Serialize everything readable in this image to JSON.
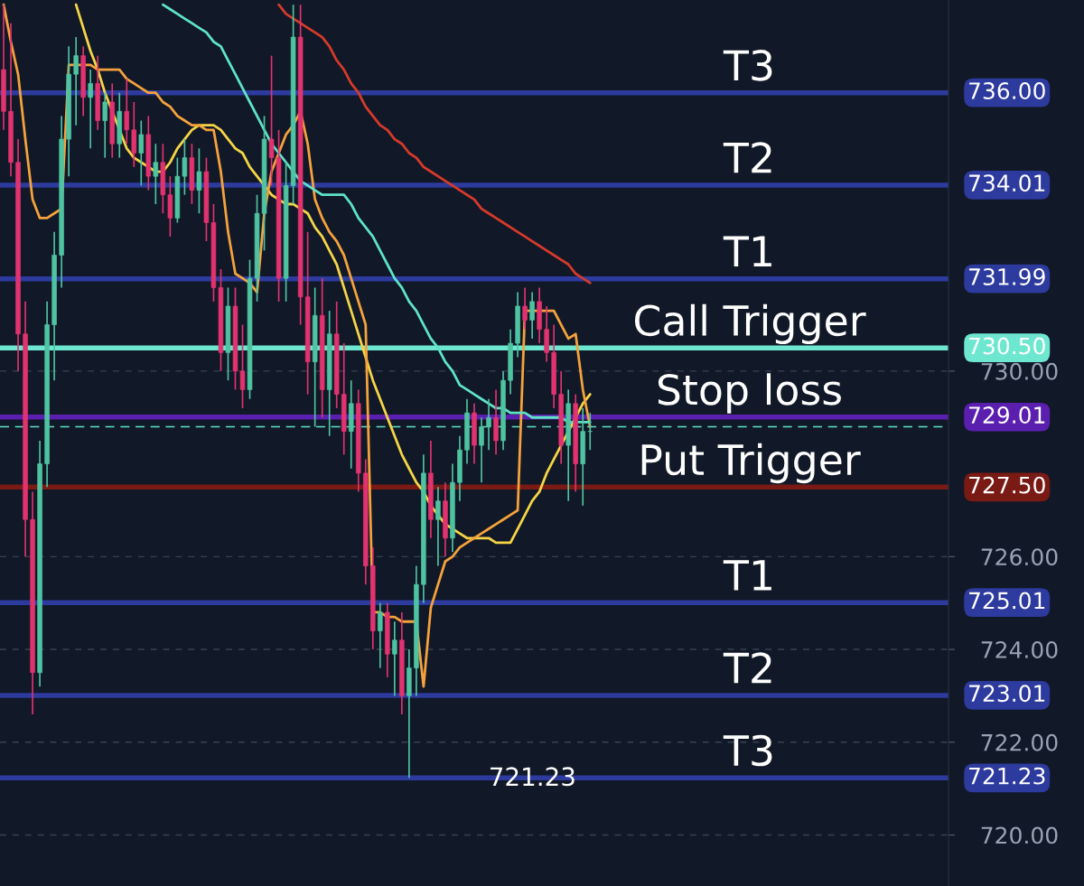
{
  "chart_data": {
    "type": "candlestick",
    "categories": [
      null,
      null,
      null,
      null,
      null,
      null,
      null,
      null,
      null,
      null,
      null,
      null,
      null,
      null,
      null,
      null,
      null,
      null,
      null,
      null,
      null,
      null,
      null,
      null,
      null,
      null,
      null,
      null,
      null,
      null,
      null,
      null,
      null,
      null,
      null,
      null,
      null,
      null,
      null,
      null,
      null,
      null,
      null,
      null,
      null,
      null,
      null,
      null,
      null,
      null,
      null,
      null,
      null,
      null,
      null,
      null,
      null,
      null,
      null,
      null,
      null,
      null,
      null,
      null,
      null,
      null,
      null,
      null,
      null,
      null,
      null,
      null,
      null,
      null,
      null,
      null,
      null,
      null,
      null,
      null,
      null,
      null,
      null,
      null,
      null,
      null,
      null,
      null,
      null,
      null,
      null,
      null,
      null,
      null,
      null,
      null,
      null,
      null,
      null,
      null,
      null,
      null,
      null,
      null,
      null,
      null,
      null,
      null,
      null,
      null,
      null,
      null,
      null,
      null,
      null,
      null,
      null,
      null,
      null,
      null,
      null,
      null,
      null,
      null,
      null,
      null,
      null,
      null,
      null,
      null,
      null
    ],
    "ohlc": [
      [
        736.5,
        737.9,
        735.2,
        735.6
      ],
      [
        735.6,
        737.5,
        734.2,
        734.5
      ],
      [
        734.5,
        735.0,
        730.0,
        730.8
      ],
      [
        730.8,
        731.5,
        726.0,
        726.8
      ],
      [
        726.8,
        727.4,
        722.6,
        723.5
      ],
      [
        723.5,
        728.5,
        723.2,
        728.0
      ],
      [
        728.0,
        731.5,
        727.5,
        731.0
      ],
      [
        731.0,
        733.0,
        729.8,
        732.5
      ],
      [
        732.5,
        735.5,
        731.8,
        735.0
      ],
      [
        735.0,
        737.0,
        734.2,
        736.4
      ],
      [
        736.4,
        737.2,
        735.3,
        736.8
      ],
      [
        736.8,
        737.0,
        735.5,
        735.9
      ],
      [
        735.9,
        736.5,
        734.8,
        736.2
      ],
      [
        736.2,
        736.8,
        735.2,
        735.4
      ],
      [
        735.4,
        736.0,
        734.6,
        735.8
      ],
      [
        735.8,
        736.2,
        734.6,
        734.9
      ],
      [
        734.9,
        736.0,
        734.6,
        735.6
      ],
      [
        735.6,
        736.3,
        734.9,
        735.2
      ],
      [
        735.2,
        735.8,
        734.4,
        734.7
      ],
      [
        734.7,
        735.4,
        734.0,
        735.1
      ],
      [
        735.1,
        735.5,
        733.9,
        734.2
      ],
      [
        734.2,
        734.9,
        733.6,
        734.5
      ],
      [
        734.5,
        734.9,
        733.4,
        733.8
      ],
      [
        733.8,
        734.2,
        732.9,
        733.3
      ],
      [
        733.3,
        734.6,
        733.2,
        734.2
      ],
      [
        734.2,
        735.0,
        733.8,
        734.6
      ],
      [
        734.6,
        734.9,
        733.6,
        733.9
      ],
      [
        733.9,
        734.8,
        733.4,
        734.3
      ],
      [
        734.3,
        734.6,
        732.8,
        733.2
      ],
      [
        733.2,
        733.6,
        731.5,
        731.8
      ],
      [
        731.8,
        732.2,
        730.0,
        730.4
      ],
      [
        730.4,
        731.8,
        729.8,
        731.4
      ],
      [
        731.4,
        731.8,
        729.6,
        730.0
      ],
      [
        730.0,
        731.0,
        729.2,
        729.6
      ],
      [
        729.6,
        732.4,
        729.4,
        732.0
      ],
      [
        732.0,
        733.8,
        731.5,
        733.4
      ],
      [
        733.4,
        735.5,
        732.6,
        735.0
      ],
      [
        735.0,
        736.8,
        734.0,
        734.6
      ],
      [
        734.6,
        735.2,
        731.5,
        732.0
      ],
      [
        732.0,
        734.5,
        731.5,
        734.0
      ],
      [
        734.0,
        737.9,
        733.6,
        737.2
      ],
      [
        737.2,
        737.9,
        731.0,
        731.6
      ],
      [
        731.6,
        733.0,
        729.5,
        730.2
      ],
      [
        730.2,
        731.8,
        728.8,
        731.2
      ],
      [
        731.2,
        732.0,
        729.0,
        729.6
      ],
      [
        729.6,
        731.3,
        728.6,
        730.8
      ],
      [
        730.8,
        731.5,
        729.2,
        729.5
      ],
      [
        729.5,
        730.6,
        728.2,
        728.7
      ],
      [
        728.7,
        729.8,
        727.9,
        729.3
      ],
      [
        729.3,
        729.6,
        727.4,
        727.8
      ],
      [
        727.8,
        728.1,
        725.4,
        725.8
      ],
      [
        725.8,
        726.2,
        724.0,
        724.4
      ],
      [
        724.4,
        725.0,
        723.6,
        724.8
      ],
      [
        724.8,
        725.0,
        723.4,
        723.9
      ],
      [
        723.9,
        724.6,
        723.0,
        724.2
      ],
      [
        724.2,
        724.8,
        722.6,
        723.0
      ],
      [
        723.0,
        724.0,
        721.23,
        723.6
      ],
      [
        723.6,
        725.8,
        723.0,
        725.4
      ],
      [
        725.4,
        728.2,
        725.0,
        727.8
      ],
      [
        727.8,
        728.5,
        726.4,
        726.8
      ],
      [
        726.8,
        727.5,
        725.8,
        727.2
      ],
      [
        727.2,
        727.6,
        726.0,
        726.4
      ],
      [
        726.4,
        728.0,
        726.1,
        727.6
      ],
      [
        727.6,
        728.6,
        727.2,
        728.3
      ],
      [
        728.3,
        729.4,
        728.0,
        729.1
      ],
      [
        729.1,
        729.3,
        728.0,
        728.4
      ],
      [
        728.4,
        729.0,
        727.6,
        728.8
      ],
      [
        728.8,
        729.4,
        728.3,
        729.0
      ],
      [
        729.0,
        729.6,
        728.2,
        728.5
      ],
      [
        728.5,
        730.0,
        728.3,
        729.8
      ],
      [
        729.8,
        730.9,
        729.5,
        730.6
      ],
      [
        730.6,
        731.7,
        730.3,
        731.4
      ],
      [
        731.4,
        731.8,
        730.9,
        731.1
      ],
      [
        731.1,
        731.7,
        730.7,
        731.5
      ],
      [
        731.5,
        731.8,
        730.6,
        730.9
      ],
      [
        730.9,
        731.4,
        730.2,
        730.4
      ],
      [
        730.4,
        731.0,
        729.2,
        729.5
      ],
      [
        729.5,
        730.0,
        728.0,
        728.4
      ],
      [
        728.4,
        729.6,
        727.2,
        729.3
      ],
      [
        729.3,
        729.5,
        727.4,
        728.0
      ],
      [
        728.0,
        729.2,
        727.1,
        728.7
      ],
      [
        728.7,
        729.1,
        728.3,
        728.7
      ],
      null,
      null,
      null,
      null,
      null,
      null,
      null,
      null,
      null,
      null,
      null,
      null,
      null,
      null,
      null,
      null,
      null,
      null,
      null,
      null,
      null,
      null,
      null,
      null,
      null,
      null,
      null,
      null,
      null,
      null,
      null,
      null,
      null,
      null,
      null,
      null,
      null,
      null,
      null,
      null,
      null,
      null,
      null,
      null,
      null,
      null,
      null,
      null,
      null
    ],
    "series": [
      {
        "type": "line",
        "color": "#f5d547",
        "values": [
          null,
          null,
          null,
          null,
          null,
          null,
          null,
          null,
          null,
          null,
          737.9,
          737.4,
          736.9,
          736.5,
          736.0,
          735.6,
          735.2,
          734.8,
          734.6,
          734.5,
          734.4,
          734.3,
          734.3,
          734.5,
          734.8,
          735.0,
          735.2,
          735.3,
          735.3,
          735.3,
          735.2,
          735.0,
          734.8,
          734.7,
          734.4,
          734.2,
          734.0,
          733.8,
          733.7,
          733.6,
          733.6,
          733.5,
          733.4,
          733.1,
          732.9,
          732.6,
          732.3,
          731.8,
          731.3,
          730.8,
          730.3,
          729.8,
          729.4,
          729.0,
          728.6,
          728.2,
          727.9,
          727.6,
          727.4,
          727.1,
          726.9,
          726.7,
          726.6,
          726.5,
          726.4,
          726.4,
          726.4,
          726.4,
          726.3,
          726.3,
          726.3,
          726.6,
          726.9,
          727.2,
          727.4,
          727.8,
          728.1,
          728.4,
          728.7,
          729.0,
          729.3,
          729.5,
          null,
          null,
          null,
          null,
          null,
          null,
          null,
          null,
          null,
          null,
          null,
          null,
          null,
          null,
          null,
          null,
          null,
          null,
          null,
          null,
          null,
          null,
          null,
          null,
          null,
          null,
          null,
          null,
          null,
          null,
          null,
          null,
          null,
          null,
          null,
          null,
          null,
          null,
          null,
          null,
          null,
          null,
          null,
          null,
          null,
          null,
          null,
          null,
          null
        ]
      },
      {
        "type": "line",
        "color": "#f5a23c",
        "values": [
          737.9,
          737.1,
          736.4,
          735.0,
          733.7,
          733.3,
          733.3,
          733.4,
          733.5,
          736.6,
          736.6,
          736.6,
          736.6,
          736.5,
          736.5,
          736.5,
          736.5,
          736.3,
          736.2,
          736.1,
          736.0,
          736.0,
          735.8,
          735.7,
          735.5,
          735.4,
          735.3,
          735.3,
          735.2,
          735.2,
          734.3,
          733.0,
          732.1,
          732.0,
          731.9,
          731.7,
          733.4,
          734.3,
          734.7,
          735.1,
          735.3,
          735.6,
          734.9,
          733.7,
          733.3,
          733.0,
          732.8,
          732.5,
          732.0,
          731.5,
          731.0,
          724.8,
          724.8,
          724.7,
          724.7,
          724.6,
          724.6,
          724.6,
          723.2,
          724.9,
          725.4,
          725.9,
          726.0,
          726.2,
          726.3,
          726.4,
          726.5,
          726.6,
          726.7,
          726.8,
          726.9,
          727.0,
          731.3,
          731.3,
          731.3,
          731.3,
          731.3,
          731.0,
          730.7,
          730.8,
          729.6,
          728.8,
          null,
          null,
          null,
          null,
          null,
          null,
          null,
          null,
          null,
          null,
          null,
          null,
          null,
          null,
          null,
          null,
          null,
          null,
          null,
          null,
          null,
          null,
          null,
          null,
          null,
          null,
          null,
          null,
          null,
          null,
          null,
          null,
          null,
          null,
          null,
          null,
          null,
          null,
          null,
          null,
          null,
          null,
          null,
          null,
          null,
          null,
          null,
          null,
          null
        ]
      },
      {
        "type": "line",
        "color": "#5ee3c8",
        "values": [
          null,
          null,
          null,
          null,
          null,
          null,
          null,
          null,
          null,
          null,
          null,
          null,
          null,
          null,
          null,
          null,
          null,
          null,
          null,
          null,
          null,
          null,
          737.9,
          737.8,
          737.7,
          737.6,
          737.5,
          737.4,
          737.3,
          737.1,
          737.0,
          736.7,
          736.4,
          736.1,
          735.8,
          735.5,
          735.2,
          734.9,
          734.7,
          734.5,
          734.3,
          734.1,
          734.0,
          733.9,
          733.8,
          733.8,
          733.8,
          733.8,
          733.6,
          733.3,
          733.1,
          732.9,
          732.6,
          732.3,
          732.0,
          731.8,
          731.5,
          731.3,
          731.0,
          730.7,
          730.5,
          730.2,
          730.0,
          729.7,
          729.6,
          729.5,
          729.4,
          729.3,
          729.2,
          729.2,
          729.1,
          729.1,
          729.1,
          729.0,
          729.0,
          729.0,
          729.0,
          729.0,
          728.9,
          728.9,
          728.9,
          728.9,
          null,
          null,
          null,
          null,
          null,
          null,
          null,
          null,
          null,
          null,
          null,
          null,
          null,
          null,
          null,
          null,
          null,
          null,
          null,
          null,
          null,
          null,
          null,
          null,
          null,
          null,
          null,
          null,
          null,
          null,
          null,
          null,
          null,
          null,
          null,
          null,
          null,
          null,
          null,
          null,
          null,
          null,
          null,
          null,
          null,
          null,
          null,
          null,
          null
        ]
      },
      {
        "type": "line",
        "color": "#d63a2a",
        "values": [
          null,
          null,
          null,
          null,
          null,
          null,
          null,
          null,
          null,
          null,
          null,
          null,
          null,
          null,
          null,
          null,
          null,
          null,
          null,
          null,
          null,
          null,
          null,
          null,
          null,
          null,
          null,
          null,
          null,
          null,
          null,
          null,
          null,
          null,
          null,
          null,
          null,
          null,
          737.9,
          737.7,
          737.6,
          737.5,
          737.4,
          737.3,
          737.2,
          737.0,
          736.7,
          736.5,
          736.2,
          736.0,
          735.7,
          735.5,
          735.3,
          735.2,
          735.0,
          734.9,
          734.7,
          734.6,
          734.4,
          734.3,
          734.2,
          734.1,
          734.0,
          733.9,
          733.8,
          733.7,
          733.5,
          733.4,
          733.3,
          733.2,
          733.1,
          733.0,
          732.9,
          732.8,
          732.7,
          732.6,
          732.5,
          732.4,
          732.3,
          732.1,
          732.0,
          731.9,
          null,
          null,
          null,
          null,
          null,
          null,
          null,
          null,
          null,
          null,
          null,
          null,
          null,
          null,
          null,
          null,
          null,
          null,
          null,
          null,
          null,
          null,
          null,
          null,
          null,
          null,
          null,
          null,
          null,
          null,
          null,
          null,
          null,
          null,
          null,
          null,
          null,
          null,
          null,
          null,
          null,
          null,
          null,
          null,
          null,
          null,
          null,
          null,
          null
        ]
      }
    ],
    "ylim": [
      718.9,
      738.0
    ],
    "yticks": [
      {
        "value": 720,
        "label": "720.00"
      },
      {
        "value": 722,
        "label": "722.00"
      },
      {
        "value": 724,
        "label": "724.00"
      },
      {
        "value": 726,
        "label": "726.00"
      },
      {
        "value": 730,
        "label": "730.00"
      }
    ],
    "grid": "y",
    "ref_lines": [
      {
        "axis": "y",
        "value": 736.0,
        "label": "736.00",
        "color": "#2d3a9e"
      },
      {
        "axis": "y",
        "value": 734.01,
        "label": "734.01",
        "color": "#2d3a9e"
      },
      {
        "axis": "y",
        "value": 731.99,
        "label": "731.99",
        "color": "#2d3a9e"
      },
      {
        "axis": "y",
        "value": 730.5,
        "label": "730.50",
        "color": "#6ee7d0"
      },
      {
        "axis": "y",
        "value": 729.01,
        "label": "729.01",
        "color": "#5b1fb0"
      },
      {
        "axis": "y",
        "value": 728.8,
        "color": "#5ee3c8",
        "line_style": "dashed"
      },
      {
        "axis": "y",
        "value": 727.5,
        "label": "727.50",
        "color": "#7a1a14"
      },
      {
        "axis": "y",
        "value": 725.01,
        "label": "725.01",
        "color": "#2d3a9e"
      },
      {
        "axis": "y",
        "value": 723.01,
        "label": "723.01",
        "color": "#2d3a9e"
      },
      {
        "axis": "y",
        "value": 721.23,
        "label": "721.23",
        "color": "#2d3a9e"
      }
    ],
    "annotations": [
      {
        "text": "T3",
        "y": 736.0
      },
      {
        "text": "T2",
        "y": 734.01
      },
      {
        "text": "T1",
        "y": 731.99
      },
      {
        "text": "Call Trigger",
        "y": 730.5
      },
      {
        "text": "Stop loss",
        "y": 729.01
      },
      {
        "text": "Put Trigger",
        "y": 727.5
      },
      {
        "text": "T1",
        "y": 725.01
      },
      {
        "text": "T2",
        "y": 723.01
      },
      {
        "text": "T3",
        "y": 721.23
      },
      "721.23"
    ]
  }
}
